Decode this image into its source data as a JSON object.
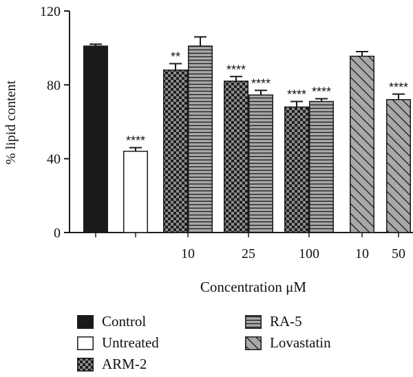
{
  "chart_data": {
    "type": "bar",
    "ylabel": "% lipid content",
    "xlabel": "Concentration μM",
    "ylim": [
      0,
      120
    ],
    "yticks": [
      0,
      40,
      80,
      120
    ],
    "groups": [
      {
        "label": "",
        "bars": [
          {
            "series": "Control",
            "value": 101,
            "error": 1,
            "sig": ""
          }
        ]
      },
      {
        "label": "",
        "bars": [
          {
            "series": "Untreated",
            "value": 44,
            "error": 2,
            "sig": "****"
          }
        ]
      },
      {
        "label": "10",
        "bars": [
          {
            "series": "ARM-2",
            "value": 88,
            "error": 3.5,
            "sig": "**"
          },
          {
            "series": "RA-5",
            "value": 101,
            "error": 5,
            "sig": ""
          }
        ]
      },
      {
        "label": "25",
        "bars": [
          {
            "series": "ARM-2",
            "value": 82,
            "error": 2.5,
            "sig": "****"
          },
          {
            "series": "RA-5",
            "value": 74.5,
            "error": 2.5,
            "sig": "****"
          }
        ]
      },
      {
        "label": "100",
        "bars": [
          {
            "series": "ARM-2",
            "value": 68,
            "error": 3,
            "sig": "****"
          },
          {
            "series": "RA-5",
            "value": 71,
            "error": 1.5,
            "sig": "****"
          }
        ]
      },
      {
        "label": "10",
        "bars": [
          {
            "series": "Lovastatin",
            "value": 95.5,
            "error": 2.5,
            "sig": ""
          }
        ]
      },
      {
        "label": "50",
        "bars": [
          {
            "series": "Lovastatin",
            "value": 72,
            "error": 3,
            "sig": "****"
          }
        ]
      }
    ],
    "legend": [
      {
        "name": "Control",
        "pattern": "solid"
      },
      {
        "name": "Untreated",
        "pattern": "empty"
      },
      {
        "name": "ARM-2",
        "pattern": "checker"
      },
      {
        "name": "RA-5",
        "pattern": "hlines"
      },
      {
        "name": "Lovastatin",
        "pattern": "diagonal"
      }
    ],
    "colors": {
      "solid": "#1a1a1a",
      "checker_dark": "#1e1e1e",
      "checker_light": "#8c8c8c",
      "fill_gray": "#a8a8a8",
      "line": "#1a1a1a"
    }
  }
}
